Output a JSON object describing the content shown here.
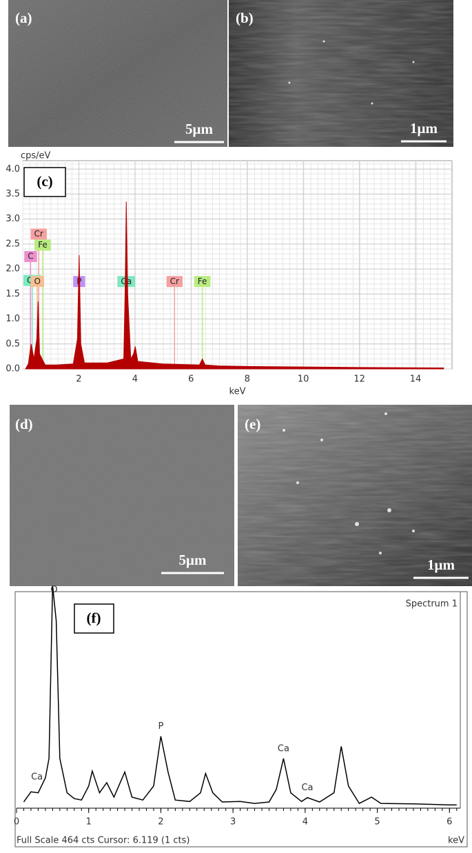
{
  "panels": [
    {
      "label": "(a)",
      "scale_bar": "5μm"
    },
    {
      "label": "(b)",
      "scale_bar": "1μm"
    },
    {
      "label": "(d)",
      "scale_bar": "5μm"
    },
    {
      "label": "(e)",
      "scale_bar": "1μm"
    }
  ],
  "chart_data": [
    {
      "type": "area",
      "panel_label": "(c)",
      "ylabel": "cps/eV",
      "xlabel": "keV",
      "color": "#b40000",
      "grid": true,
      "x": [
        0.1,
        0.2,
        0.3,
        0.4,
        0.5,
        0.55,
        0.6,
        0.8,
        1.2,
        1.8,
        1.95,
        2.01,
        2.07,
        2.2,
        3.0,
        3.6,
        3.65,
        3.69,
        3.74,
        3.85,
        3.95,
        4.01,
        4.1,
        5.0,
        6.3,
        6.4,
        6.5,
        7.0,
        8,
        10,
        12,
        15
      ],
      "series": [
        {
          "values": [
            0,
            0.1,
            0.5,
            0.2,
            0.6,
            1.35,
            0.3,
            0.08,
            0.08,
            0.1,
            0.6,
            2.28,
            0.5,
            0.12,
            0.12,
            0.2,
            1.6,
            3.35,
            1.5,
            0.2,
            0.3,
            0.45,
            0.15,
            0.1,
            0.08,
            0.2,
            0.08,
            0.06,
            0.05,
            0.04,
            0.03,
            0.02
          ]
        }
      ],
      "markers": [
        {
          "label": "Cr",
          "x": 0.57,
          "y": 2.7,
          "color": "#f4a0a0"
        },
        {
          "label": "Fe",
          "x": 0.71,
          "y": 2.48,
          "color": "#b8ec80"
        },
        {
          "label": "C",
          "x": 0.28,
          "y": 2.25,
          "color": "#ec90cc"
        },
        {
          "label": "Ca",
          "x": 0.34,
          "y": 1.77,
          "color": "#7ee8c0"
        },
        {
          "label": "O",
          "x": 0.52,
          "y": 1.75,
          "color": "#f6c090"
        },
        {
          "label": "P",
          "x": 2.01,
          "y": 1.75,
          "color": "#c090f4"
        },
        {
          "label": "Ca",
          "x": 3.69,
          "y": 1.75,
          "color": "#7ee8c0"
        },
        {
          "label": "Cr",
          "x": 5.41,
          "y": 1.75,
          "color": "#f4a0a0"
        },
        {
          "label": "Fe",
          "x": 6.4,
          "y": 1.75,
          "color": "#b8ec80"
        }
      ],
      "xlim": [
        0,
        15.3
      ],
      "xticks": [
        2,
        4,
        6,
        8,
        10,
        12,
        14
      ],
      "ylim": [
        0,
        4.17
      ],
      "yticks": [
        {
          "value": 0,
          "label": "0.0"
        },
        0.5,
        {
          "value": 1,
          "label": "1.0"
        },
        1.5,
        {
          "value": 2,
          "label": "2.0"
        },
        2.5,
        {
          "value": 3,
          "label": "3.0"
        },
        3.5,
        {
          "value": 4,
          "label": "4.0"
        }
      ]
    },
    {
      "type": "line",
      "panel_label": "(f)",
      "title": "Spectrum 1",
      "footer": "Full Scale 464 cts Cursor: 6.119  (1 cts)",
      "xlabel": "keV",
      "color": "#000000",
      "x": [
        0.1,
        0.2,
        0.3,
        0.4,
        0.45,
        0.5,
        0.55,
        0.6,
        0.7,
        0.8,
        0.9,
        1.0,
        1.05,
        1.15,
        1.25,
        1.35,
        1.5,
        1.6,
        1.75,
        1.9,
        2.0,
        2.1,
        2.2,
        2.4,
        2.55,
        2.62,
        2.72,
        2.85,
        3.1,
        3.3,
        3.5,
        3.6,
        3.7,
        3.8,
        3.95,
        4.03,
        4.2,
        4.4,
        4.5,
        4.6,
        4.75,
        4.92,
        5.05,
        5.5,
        6.0,
        6.1
      ],
      "series": [
        {
          "values": [
            10,
            31,
            29,
            60,
            100,
            458,
            385,
            100,
            29,
            17,
            14,
            43,
            74,
            29,
            50,
            20,
            72,
            20,
            14,
            43,
            146,
            72,
            14,
            11,
            29,
            69,
            29,
            10,
            11,
            7,
            10,
            36,
            100,
            29,
            11,
            19,
            10,
            29,
            125,
            43,
            7,
            20,
            7,
            6,
            4,
            4
          ]
        }
      ],
      "peak_labels": [
        {
          "text": "O",
          "x": 0.52
        },
        {
          "text": "Ca",
          "x": 0.34
        },
        {
          "text": "P",
          "x": 2.0
        },
        {
          "text": "Ca",
          "x": 3.7
        },
        {
          "text": "Ca",
          "x": 4.03
        }
      ],
      "xlim": [
        0,
        6.15
      ],
      "xticks": [
        0,
        1,
        2,
        3,
        4,
        5,
        6
      ],
      "ylim": [
        0,
        464
      ]
    }
  ]
}
